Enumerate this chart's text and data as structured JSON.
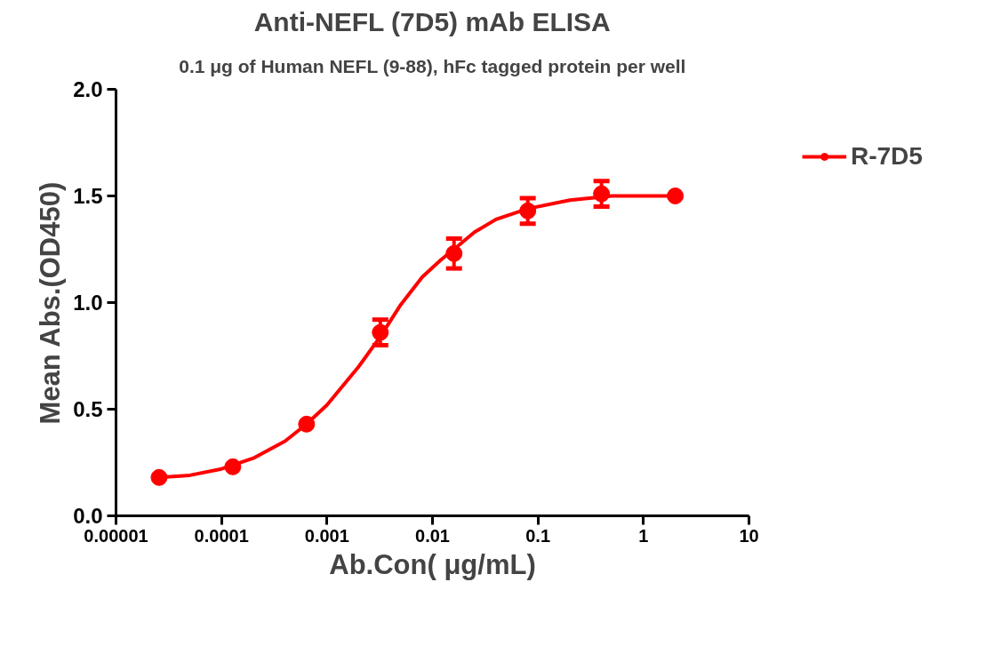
{
  "chart_data": {
    "type": "scatter",
    "title": "Anti-NEFL (7D5) mAb ELISA",
    "subtitle": "0.1 μg of Human NEFL (9-88), hFc tagged protein per well",
    "xlabel": "Ab.Con( μg/mL)",
    "ylabel": "Mean Abs.(OD450)",
    "log": "x",
    "xlim": [
      1e-05,
      10
    ],
    "xticks": [
      {
        "value": 1e-05,
        "label": "0.00001"
      },
      0.0001,
      0.001,
      0.01,
      0.1,
      1,
      10
    ],
    "ylim": [
      0,
      2
    ],
    "yticks": [
      {
        "value": 0,
        "label": "0.0"
      },
      {
        "value": 0.5,
        "label": "0.5"
      },
      {
        "value": 1,
        "label": "1.0"
      },
      {
        "value": 1.5,
        "label": "1.5"
      },
      {
        "value": 2,
        "label": "2.0"
      }
    ],
    "grid": false,
    "legend": "top right",
    "series": [
      {
        "name": "R-7D5",
        "marker": "circle",
        "color": "#ff0000",
        "x": [
          2.56e-05,
          0.000128,
          0.00064,
          0.0032,
          0.016,
          0.08,
          0.4,
          2
        ],
        "values": [
          0.18,
          0.23,
          0.43,
          0.86,
          1.23,
          1.43,
          1.51,
          1.5
        ],
        "errors": [
          null,
          null,
          null,
          0.06,
          0.07,
          0.06,
          0.06,
          null
        ]
      },
      {
        "type": "line",
        "marker": "none",
        "color": "#ff0000",
        "x": [
          2.56e-05,
          5e-05,
          0.0001,
          0.0002,
          0.0004,
          0.00064,
          0.001,
          0.002,
          0.0032,
          0.005,
          0.008,
          0.012,
          0.016,
          0.025,
          0.04,
          0.08,
          0.2,
          0.5,
          1,
          2
        ],
        "values": [
          0.18,
          0.19,
          0.22,
          0.27,
          0.35,
          0.43,
          0.52,
          0.7,
          0.84,
          0.99,
          1.12,
          1.2,
          1.25,
          1.33,
          1.39,
          1.44,
          1.48,
          1.5,
          1.5,
          1.5
        ]
      }
    ]
  }
}
